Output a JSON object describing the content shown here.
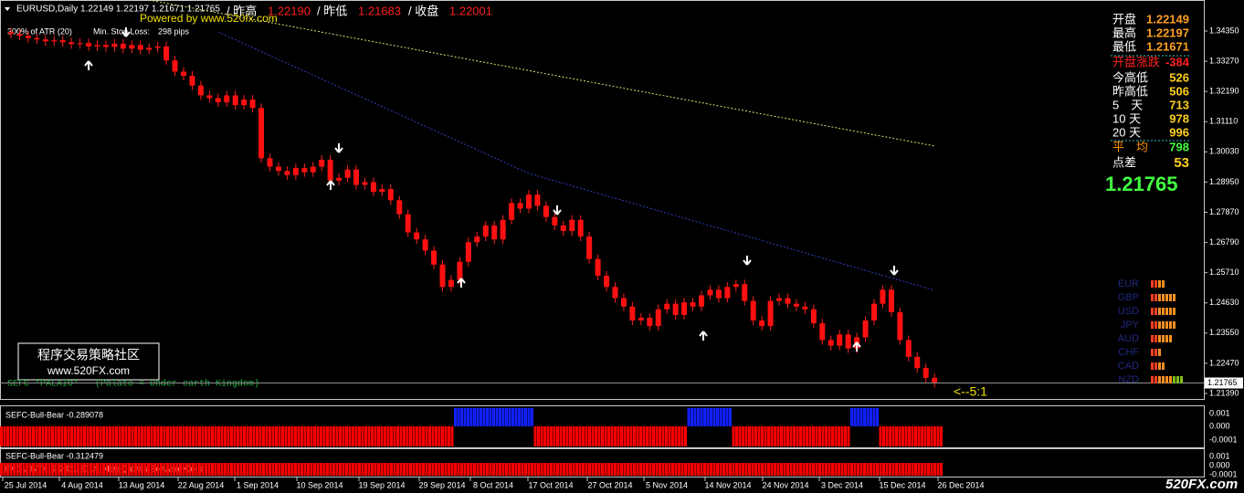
{
  "header": {
    "symbol": "EURUSD,Daily",
    "ohlc": "1.22149 1.22197 1.21671 1.21765",
    "powered": "Powered by www.520fx.com",
    "prev_high_label": "/ 昨高",
    "prev_high": "1.22190",
    "prev_low_label": "/ 昨低",
    "prev_low": "1.21683",
    "close_label": "/ 收盘",
    "close": "1.22001"
  },
  "atr": {
    "label": "300% of ATR (20)",
    "stop_label": "Min. Stop Loss:",
    "stop": "298 pips"
  },
  "price_axis": {
    "ticks": [
      {
        "value": 1.3435,
        "label": "1.34350"
      },
      {
        "value": 1.3327,
        "label": "1.33270"
      },
      {
        "value": 1.3219,
        "label": "1.32190"
      },
      {
        "value": 1.3111,
        "label": "1.31110"
      },
      {
        "value": 1.3003,
        "label": "1.30030"
      },
      {
        "value": 1.2895,
        "label": "1.28950"
      },
      {
        "value": 1.2787,
        "label": "1.27870"
      },
      {
        "value": 1.2679,
        "label": "1.26790"
      },
      {
        "value": 1.2571,
        "label": "1.25710"
      },
      {
        "value": 1.2463,
        "label": "1.24630"
      },
      {
        "value": 1.2355,
        "label": "1.23550"
      },
      {
        "value": 1.2247,
        "label": "1.22470"
      },
      {
        "value": 1.2139,
        "label": "1.21390"
      }
    ],
    "current": {
      "value": 1.21765,
      "label": "1.21765"
    }
  },
  "candles": {
    "close": [
      1.3425,
      1.3418,
      1.341,
      1.3405,
      1.3398,
      1.3402,
      1.3395,
      1.3388,
      1.3392,
      1.338,
      1.3385,
      1.3378,
      1.339,
      1.3372,
      1.3385,
      1.3368,
      1.3375,
      1.338,
      1.333,
      1.329,
      1.3275,
      1.324,
      1.3205,
      1.3195,
      1.318,
      1.3205,
      1.317,
      1.319,
      1.316,
      1.298,
      1.295,
      1.2935,
      1.292,
      1.2945,
      1.293,
      1.295,
      1.2975,
      1.29,
      1.291,
      1.294,
      1.2885,
      1.2895,
      1.286,
      1.287,
      1.283,
      1.278,
      1.2715,
      1.269,
      1.265,
      1.26,
      1.252,
      1.2545,
      1.261,
      1.268,
      1.27,
      1.274,
      1.269,
      1.276,
      1.282,
      1.28,
      1.285,
      1.281,
      1.277,
      1.274,
      1.272,
      1.276,
      1.27,
      1.262,
      1.256,
      1.252,
      1.248,
      1.245,
      1.24,
      1.241,
      1.238,
      1.244,
      1.246,
      1.242,
      1.2465,
      1.245,
      1.249,
      1.251,
      1.248,
      1.252,
      1.253,
      1.247,
      1.24,
      1.238,
      1.247,
      1.248,
      1.246,
      1.245,
      1.244,
      1.239,
      1.233,
      1.231,
      1.235,
      1.23,
      1.234,
      1.24,
      1.246,
      1.251,
      1.243,
      1.233,
      1.227,
      1.223,
      1.2195,
      1.2177
    ]
  },
  "moving_averages": [
    {
      "color": "#e0e070",
      "x": [
        16,
        107
      ],
      "values": [
        1.3546,
        1.3024
      ]
    },
    {
      "color": "#3040c0",
      "x": [
        24,
        60,
        107
      ],
      "values": [
        1.3432,
        1.2926,
        1.2508
      ]
    }
  ],
  "info_panel": {
    "rows": [
      {
        "label": "开盘",
        "value": "1.22149"
      },
      {
        "label": "最高",
        "value": "1.22197"
      },
      {
        "label": "最低",
        "value": "1.21671"
      },
      {
        "label": "开盘涨跌",
        "value": "-384"
      },
      {
        "label": "今高低",
        "value": "526"
      },
      {
        "label": "昨高低",
        "value": "506"
      },
      {
        "label": "5　天",
        "value": "713"
      },
      {
        "label": "10 天",
        "value": "978"
      },
      {
        "label": "20 天",
        "value": "996"
      },
      {
        "label": "平　均",
        "value": "798"
      },
      {
        "label": "点差",
        "value": "53"
      }
    ],
    "last": "1.21765"
  },
  "currencies": [
    "EUR",
    "GBP",
    "USD",
    "JPY",
    "AUD",
    "CHF",
    "CAD",
    "NZD"
  ],
  "logo": {
    "line1": "程序交易策略社区",
    "line2": "www.520FX.com"
  },
  "indicator_name": "SEFC *PALAIO* - (Palato = Under earth Kingdom)",
  "ratio": "<--5:1",
  "panels": [
    {
      "title": "SEFC-Bull-Bear -0.289078",
      "ticks": [
        "0.001",
        "0.000",
        "-0.0001"
      ]
    },
    {
      "title": "SEFC-Bull-Bear -0.312479",
      "copyright": "FXCM MT4, ? 2001-2014, MetaQuotes Software Corp.",
      "ticks": [
        "0.001",
        "0.000",
        "-0.0001"
      ]
    }
  ],
  "dates": [
    "25 Jul 2014",
    "4 Aug 2014",
    "13 Aug 2014",
    "22 Aug 2014",
    "1 Sep 2014",
    "10 Sep 2014",
    "19 Sep 2014",
    "29 Sep 2014",
    "8 Oct 2014",
    "17 Oct 2014",
    "27 Oct 2014",
    "5 Nov 2014",
    "14 Nov 2014",
    "24 Nov 2014",
    "3 Dec 2014",
    "15 Dec 2014",
    "26 Dec 2014"
  ],
  "watermark": "520FX.com"
}
